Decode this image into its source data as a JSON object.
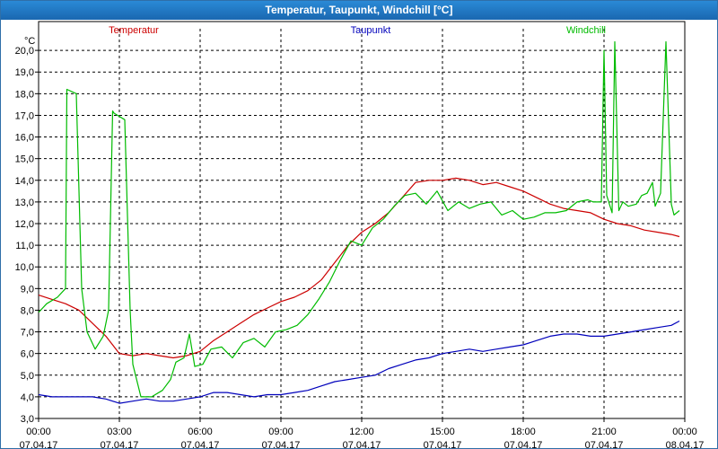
{
  "window": {
    "title": "Temperatur, Taupunkt, Windchill [°C]"
  },
  "chart_data": {
    "type": "line",
    "title": "Temperatur, Taupunkt, Windchill [°C]",
    "ylabel": "°C",
    "xlabel": "",
    "ylim": [
      3.0,
      21.0
    ],
    "xlim": [
      0,
      24
    ],
    "yticks": [
      "3,0",
      "4,0",
      "5,0",
      "6,0",
      "7,0",
      "8,0",
      "9,0",
      "10,0",
      "11,0",
      "12,0",
      "13,0",
      "14,0",
      "15,0",
      "16,0",
      "17,0",
      "18,0",
      "19,0",
      "20,0"
    ],
    "xticks": [
      {
        "time": "00:00",
        "date": "07.04.17"
      },
      {
        "time": "03:00",
        "date": "07.04.17"
      },
      {
        "time": "06:00",
        "date": "07.04.17"
      },
      {
        "time": "09:00",
        "date": "07.04.17"
      },
      {
        "time": "12:00",
        "date": "07.04.17"
      },
      {
        "time": "15:00",
        "date": "07.04.17"
      },
      {
        "time": "18:00",
        "date": "07.04.17"
      },
      {
        "time": "21:00",
        "date": "07.04.17"
      },
      {
        "time": "00:00",
        "date": "08.04.17"
      }
    ],
    "grid": true,
    "series": [
      {
        "name": "Temperatur",
        "color": "#cc0000",
        "x": [
          0,
          0.5,
          1,
          1.5,
          2,
          2.5,
          3,
          3.5,
          4,
          4.5,
          5,
          5.5,
          6,
          6.5,
          7,
          7.5,
          8,
          8.5,
          9,
          9.5,
          10,
          10.5,
          11,
          11.5,
          12,
          12.5,
          13,
          13.5,
          14,
          14.5,
          15,
          15.5,
          16,
          16.5,
          17,
          17.5,
          18,
          18.5,
          19,
          19.5,
          20,
          20.5,
          21,
          21.5,
          22,
          22.5,
          23,
          23.5,
          23.8
        ],
        "values": [
          8.7,
          8.5,
          8.3,
          8.0,
          7.4,
          6.8,
          6.0,
          5.9,
          6.0,
          5.9,
          5.8,
          5.9,
          6.1,
          6.6,
          7.0,
          7.4,
          7.8,
          8.1,
          8.4,
          8.6,
          8.9,
          9.4,
          10.2,
          11.0,
          11.6,
          12.0,
          12.5,
          13.2,
          13.9,
          14.0,
          14.0,
          14.1,
          14.0,
          13.8,
          13.9,
          13.7,
          13.5,
          13.2,
          12.9,
          12.7,
          12.6,
          12.5,
          12.2,
          12.0,
          11.9,
          11.7,
          11.6,
          11.5,
          11.4
        ]
      },
      {
        "name": "Taupunkt",
        "color": "#0000bb",
        "x": [
          0,
          0.5,
          1,
          1.5,
          2,
          2.5,
          3,
          3.5,
          4,
          4.5,
          5,
          5.5,
          6,
          6.5,
          7,
          7.5,
          8,
          8.5,
          9,
          9.5,
          10,
          10.5,
          11,
          11.5,
          12,
          12.5,
          13,
          13.5,
          14,
          14.5,
          15,
          15.5,
          16,
          16.5,
          17,
          17.5,
          18,
          18.5,
          19,
          19.5,
          20,
          20.5,
          21,
          21.5,
          22,
          22.5,
          23,
          23.5,
          23.8
        ],
        "values": [
          4.1,
          4.0,
          4.0,
          4.0,
          4.0,
          3.9,
          3.7,
          3.8,
          3.9,
          3.8,
          3.8,
          3.9,
          4.0,
          4.2,
          4.2,
          4.1,
          4.0,
          4.1,
          4.1,
          4.2,
          4.3,
          4.5,
          4.7,
          4.8,
          4.9,
          5.0,
          5.3,
          5.5,
          5.7,
          5.8,
          6.0,
          6.1,
          6.2,
          6.1,
          6.2,
          6.3,
          6.4,
          6.6,
          6.8,
          6.9,
          6.9,
          6.8,
          6.8,
          6.9,
          7.0,
          7.1,
          7.2,
          7.3,
          7.5
        ]
      },
      {
        "name": "Windchill",
        "color": "#00bb00",
        "x": [
          0,
          0.3,
          0.7,
          1.0,
          1.05,
          1.4,
          1.6,
          1.8,
          2.1,
          2.4,
          2.6,
          2.75,
          2.8,
          3.2,
          3.4,
          3.5,
          3.8,
          4.2,
          4.6,
          4.9,
          5.1,
          5.4,
          5.6,
          5.8,
          6.1,
          6.4,
          6.8,
          7.2,
          7.6,
          8.0,
          8.4,
          8.8,
          9.2,
          9.6,
          10.0,
          10.4,
          10.8,
          11.2,
          11.6,
          12.0,
          12.4,
          12.8,
          13.2,
          13.6,
          14.0,
          14.4,
          14.8,
          15.2,
          15.6,
          16.0,
          16.4,
          16.8,
          17.2,
          17.6,
          18.0,
          18.4,
          18.8,
          19.2,
          19.6,
          20.0,
          20.4,
          20.6,
          20.9,
          21.0,
          21.1,
          21.3,
          21.4,
          21.55,
          21.7,
          21.9,
          22.2,
          22.4,
          22.6,
          22.8,
          22.9,
          23.1,
          23.3,
          23.5,
          23.6,
          23.8
        ],
        "values": [
          7.9,
          8.3,
          8.6,
          9.0,
          18.2,
          18.0,
          9.0,
          7.0,
          6.2,
          6.8,
          8.0,
          17.2,
          17.1,
          16.8,
          8.0,
          5.5,
          4.0,
          4.0,
          4.3,
          4.8,
          5.6,
          5.8,
          6.9,
          5.4,
          5.5,
          6.2,
          6.3,
          5.8,
          6.5,
          6.7,
          6.3,
          7.0,
          7.1,
          7.3,
          7.8,
          8.5,
          9.3,
          10.3,
          11.2,
          11.0,
          11.8,
          12.2,
          12.8,
          13.3,
          13.4,
          12.9,
          13.5,
          12.6,
          13.0,
          12.7,
          12.9,
          13.0,
          12.4,
          12.6,
          12.2,
          12.3,
          12.5,
          12.5,
          12.6,
          13.0,
          13.1,
          13.0,
          13.0,
          20.0,
          13.3,
          12.5,
          20.4,
          12.6,
          13.0,
          12.8,
          12.9,
          13.3,
          13.4,
          13.9,
          12.8,
          13.4,
          20.4,
          12.9,
          12.4,
          12.6
        ]
      }
    ]
  }
}
